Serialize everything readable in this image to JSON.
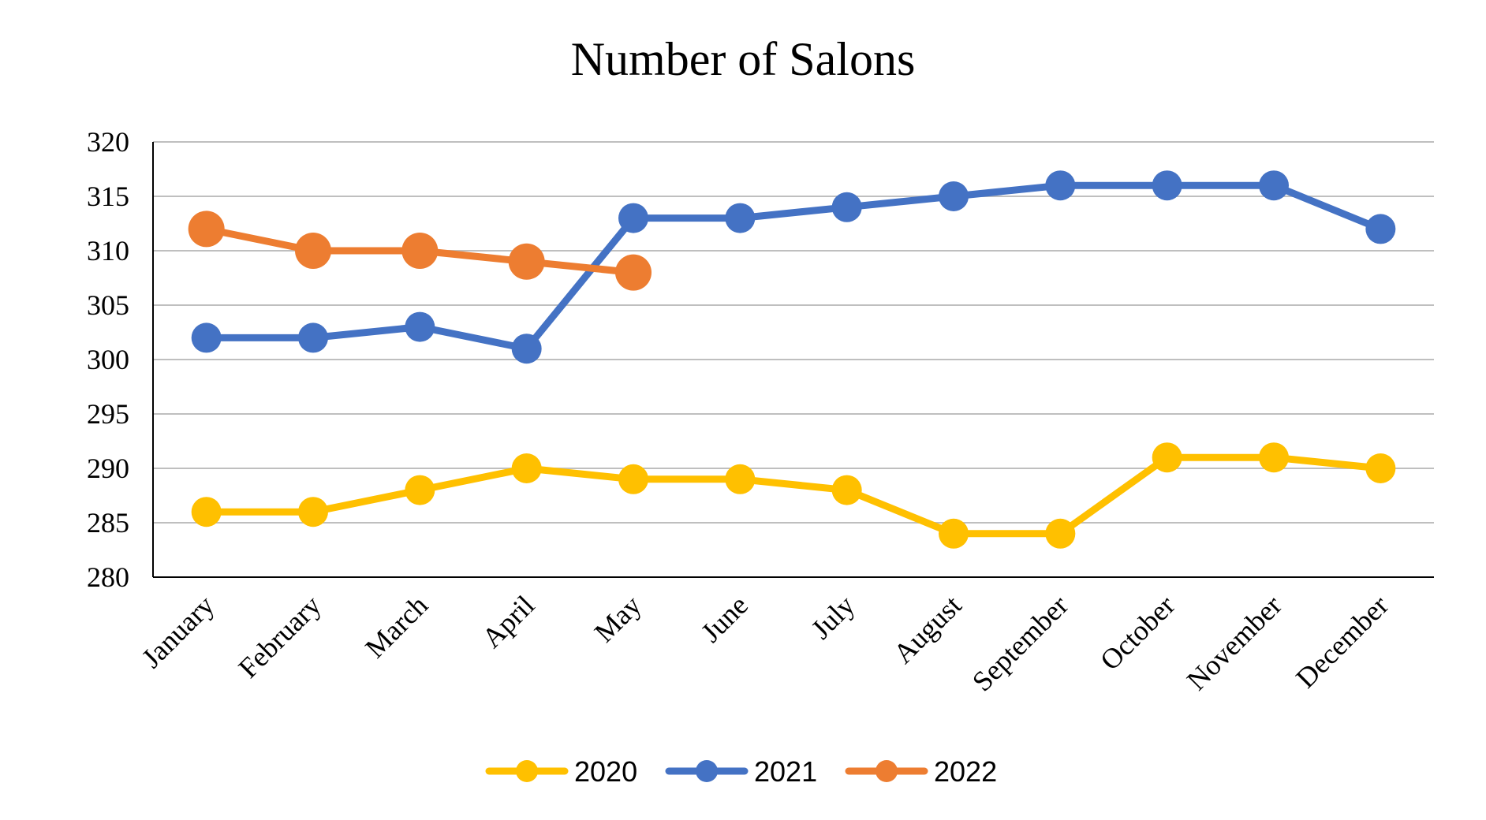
{
  "chart_data": {
    "type": "line",
    "title": "Number of Salons",
    "xlabel": "",
    "ylabel": "",
    "categories": [
      "January",
      "February",
      "March",
      "April",
      "May",
      "June",
      "July",
      "August",
      "September",
      "October",
      "November",
      "December"
    ],
    "ylim": [
      280,
      320
    ],
    "yticks": [
      280,
      285,
      290,
      295,
      300,
      305,
      310,
      315,
      320
    ],
    "grid": true,
    "legend_position": "bottom",
    "series": [
      {
        "name": "2020",
        "color": "#FFC000",
        "values": [
          286,
          286,
          288,
          290,
          289,
          289,
          288,
          284,
          284,
          291,
          291,
          290
        ]
      },
      {
        "name": "2021",
        "color": "#4472C4",
        "values": [
          302,
          302,
          303,
          301,
          313,
          313,
          314,
          315,
          316,
          316,
          316,
          312
        ]
      },
      {
        "name": "2022",
        "color": "#ED7D31",
        "values": [
          312,
          310,
          310,
          309,
          308,
          null,
          null,
          null,
          null,
          null,
          null,
          null
        ]
      }
    ]
  }
}
